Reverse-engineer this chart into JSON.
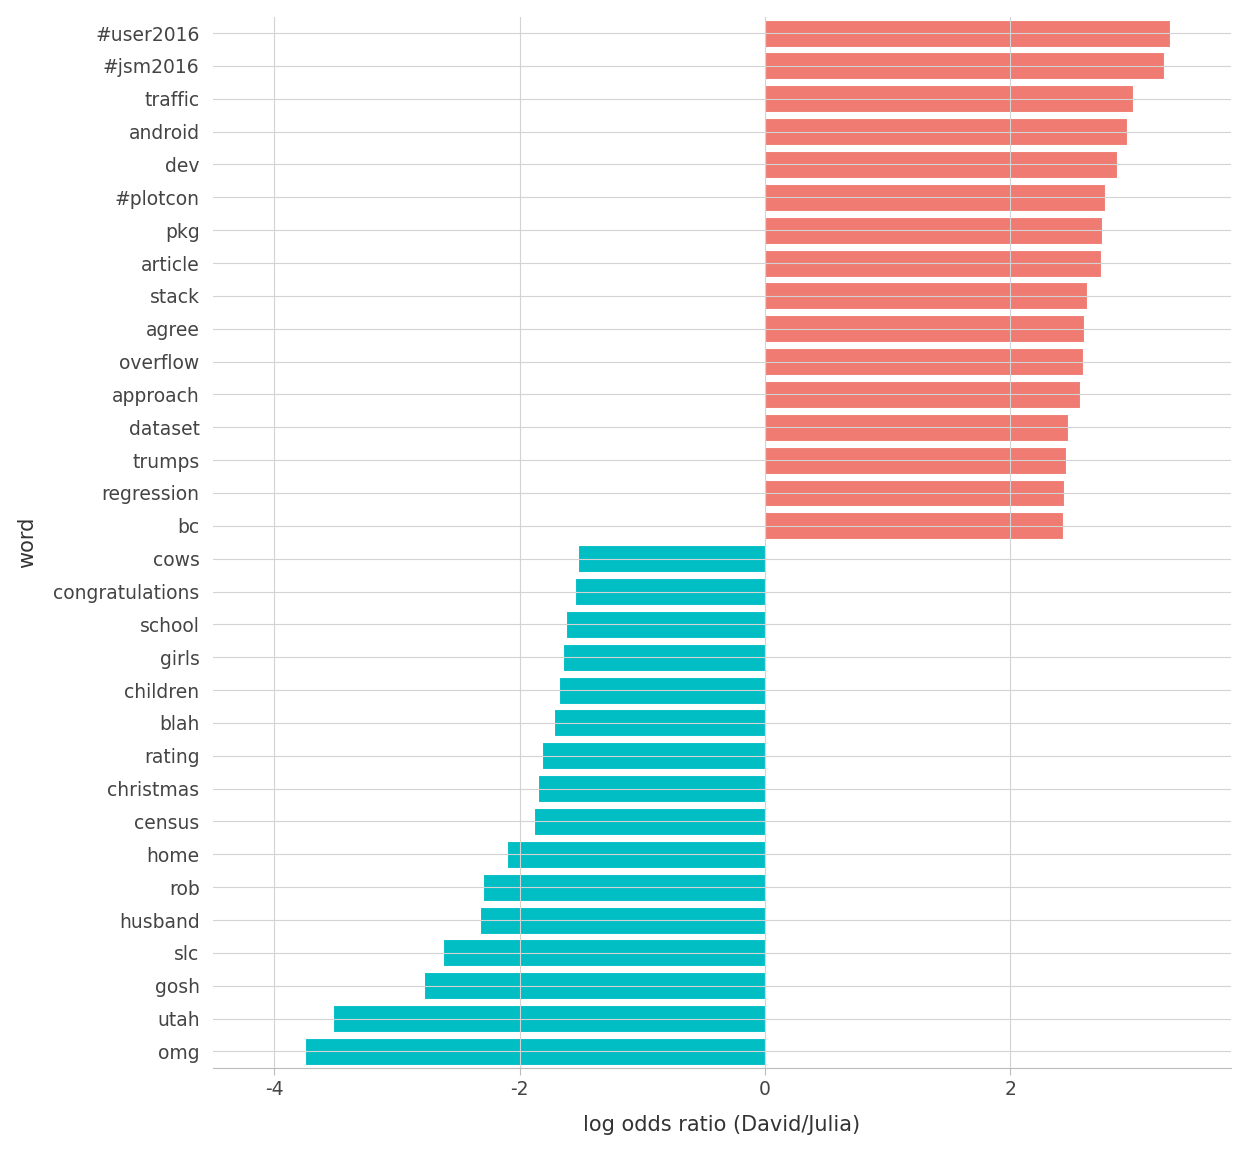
{
  "words": [
    "#user2016",
    "#jsm2016",
    "traffic",
    "android",
    "dev",
    "#plotcon",
    "pkg",
    "article",
    "stack",
    "agree",
    "overflow",
    "approach",
    "dataset",
    "trumps",
    "regression",
    "bc",
    "cows",
    "congratulations",
    "school",
    "girls",
    "children",
    "blah",
    "rating",
    "christmas",
    "census",
    "home",
    "rob",
    "husband",
    "slc",
    "gosh",
    "utah",
    "omg"
  ],
  "log_odds": [
    3.3,
    3.25,
    3.0,
    2.95,
    2.87,
    2.77,
    2.75,
    2.74,
    2.62,
    2.6,
    2.59,
    2.57,
    2.47,
    2.45,
    2.44,
    2.43,
    -1.52,
    -1.55,
    -1.62,
    -1.65,
    -1.68,
    -1.72,
    -1.82,
    -1.85,
    -1.88,
    -2.1,
    -2.3,
    -2.32,
    -2.62,
    -2.78,
    -3.52,
    -3.75
  ],
  "pos_color": "#F07B72",
  "neg_color": "#00BEC4",
  "xlabel": "log odds ratio (David/Julia)",
  "ylabel": "word",
  "xlim": [
    -4.5,
    3.8
  ],
  "xticks": [
    -4,
    -2,
    0,
    2
  ],
  "bg_color": "#FFFFFF",
  "grid_color": "#D3D3D3",
  "bar_height": 0.82
}
